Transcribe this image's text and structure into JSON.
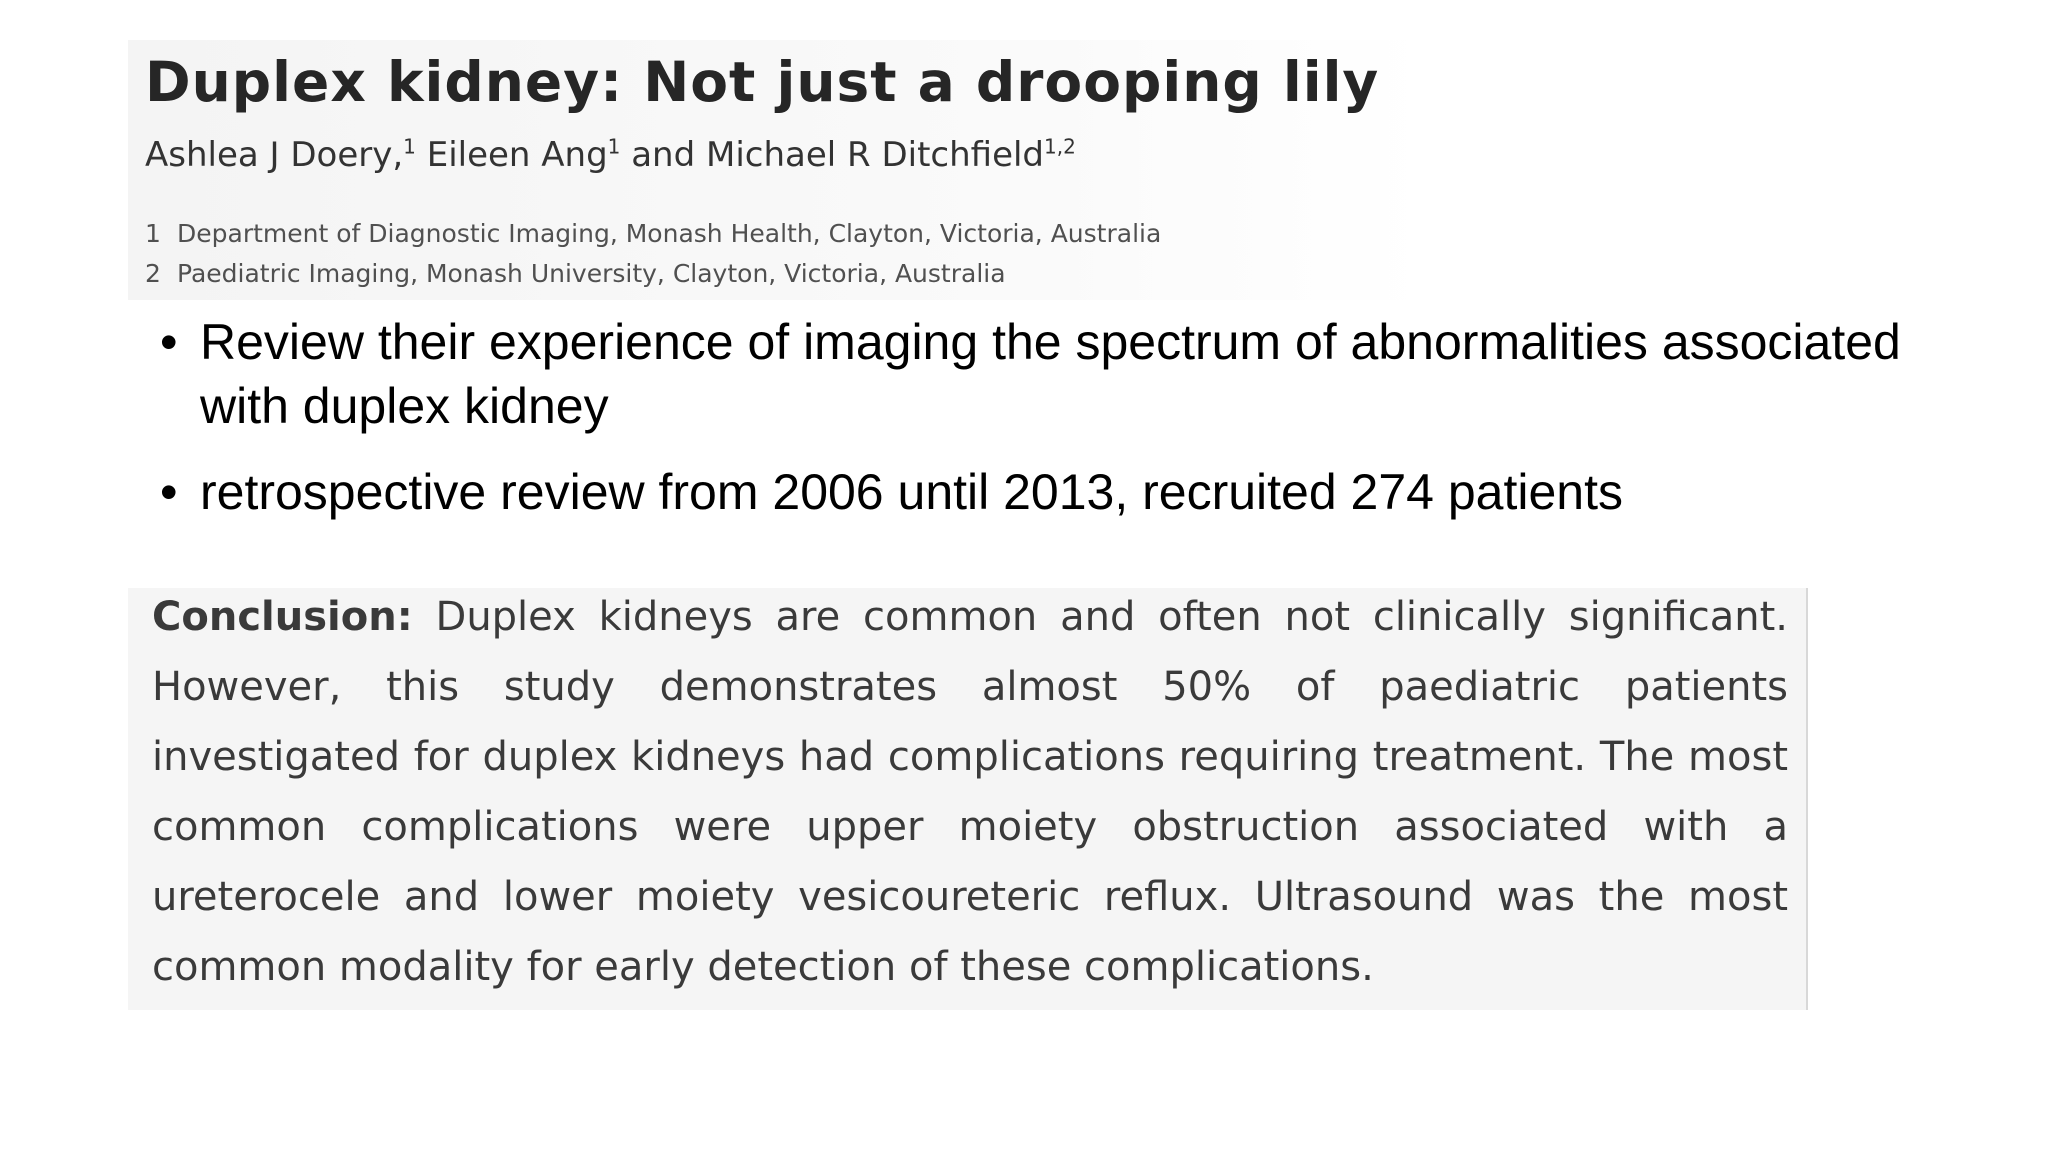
{
  "paper": {
    "title": "Duplex kidney: Not just a drooping lily",
    "authors": [
      {
        "name": "Ashlea J Doery,",
        "sup": "1"
      },
      {
        "name": " Eileen Ang",
        "sup": "1"
      },
      {
        "name": " and Michael R Ditchfield",
        "sup": "1,2"
      }
    ],
    "affiliations": [
      {
        "num": "1",
        "text": "Department of Diagnostic Imaging, Monash Health, Clayton, Victoria, Australia"
      },
      {
        "num": "2",
        "text": "Paediatric Imaging, Monash University, Clayton, Victoria, Australia"
      }
    ]
  },
  "bullets": [
    "Review their experience of imaging the spectrum of abnormalities associated with duplex kidney",
    "retrospective review from 2006 until 2013, recruited 274 patients"
  ],
  "conclusion": {
    "label": "Conclusion:",
    "text": "Duplex kidneys are common and often not clinically significant. However, this study demonstrates almost 50% of paediatric patients investigated for duplex kidneys had complications requiring treatment. The most common complications were upper moiety obstruction associated with a ureterocele and lower moiety vesicoureteric reflux. Ultrasound was the most common modality for early detection of these complications."
  }
}
